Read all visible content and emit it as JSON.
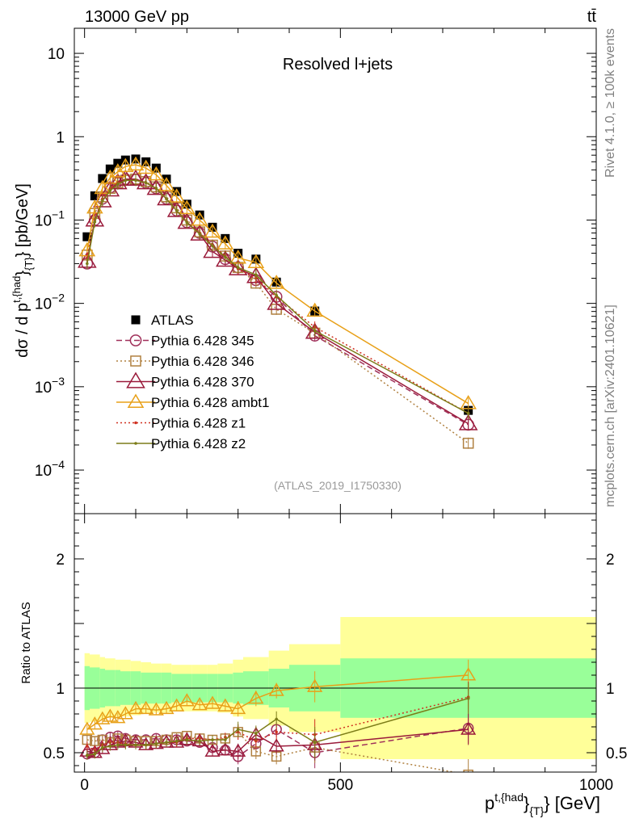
{
  "header": {
    "energy_label": "13000 GeV pp",
    "process_label": "tt̄",
    "panel_title": "Resolved l+jets",
    "analysis_id": "(ATLAS_2019_I1750330)",
    "side_rivet": "Rivet 4.1.0, ≥ 100k events",
    "side_mcplots": "mcplots.cern.ch [arXiv:2401.10621]"
  },
  "chart_data": [
    {
      "type": "line",
      "panel": "main",
      "ylabel": "dσ / d p^{t,{had}}_{T} [pb/GeV]",
      "ylabel_parts": {
        "main": "dσ / d p",
        "sup": "t,{had",
        "sup_close": "}",
        "sub": "{T}",
        "unit": "} [pb/GeV]"
      },
      "yscale": "log",
      "xlim": [
        -20,
        1000
      ],
      "ylim": [
        3e-05,
        20
      ],
      "y_ticks": [
        {
          "value": 0.0001,
          "base": "10",
          "exp": "−4"
        },
        {
          "value": 0.001,
          "base": "10",
          "exp": "−3"
        },
        {
          "value": 0.01,
          "base": "10",
          "exp": "−2"
        },
        {
          "value": 0.1,
          "base": "10",
          "exp": "−1"
        },
        {
          "value": 1,
          "base": "1",
          "exp": ""
        },
        {
          "value": 10,
          "base": "10",
          "exp": ""
        }
      ],
      "x": [
        5,
        20,
        35,
        50,
        65,
        80,
        100,
        120,
        140,
        160,
        180,
        200,
        225,
        250,
        275,
        300,
        335,
        375,
        450,
        750
      ],
      "series": [
        {
          "name": "ATLAS",
          "color": "#000000",
          "style": "data",
          "values": [
            0.063,
            0.195,
            0.315,
            0.41,
            0.48,
            0.525,
            0.54,
            0.5,
            0.42,
            0.31,
            0.22,
            0.155,
            0.115,
            0.082,
            0.06,
            0.04,
            0.034,
            0.018,
            0.0081,
            0.00052
          ]
        },
        {
          "name": "Pythia 6.428 345",
          "color": "#a0305a",
          "style": "dashed",
          "marker": "circle",
          "values": [
            0.03,
            0.1,
            0.18,
            0.245,
            0.29,
            0.31,
            0.305,
            0.28,
            0.24,
            0.18,
            0.13,
            0.094,
            0.07,
            0.048,
            0.034,
            0.027,
            0.019,
            0.012,
            0.0041,
            0.00035
          ]
        },
        {
          "name": "Pythia 6.428 346",
          "color": "#b08040",
          "style": "dotted",
          "marker": "square",
          "values": [
            0.038,
            0.12,
            0.19,
            0.24,
            0.28,
            0.3,
            0.31,
            0.29,
            0.25,
            0.19,
            0.14,
            0.1,
            0.072,
            0.05,
            0.037,
            0.027,
            0.0175,
            0.0085,
            0.0044,
            0.00021
          ]
        },
        {
          "name": "Pythia 6.428 370",
          "color": "#9a1a3a",
          "style": "solid",
          "marker": "triangle",
          "values": [
            0.032,
            0.1,
            0.17,
            0.23,
            0.28,
            0.31,
            0.31,
            0.28,
            0.24,
            0.18,
            0.13,
            0.094,
            0.068,
            0.042,
            0.033,
            0.026,
            0.021,
            0.01,
            0.0045,
            0.00036
          ]
        },
        {
          "name": "Pythia 6.428 ambt1",
          "color": "#e8a018",
          "style": "solid",
          "marker": "triangle",
          "values": [
            0.043,
            0.14,
            0.24,
            0.32,
            0.38,
            0.44,
            0.46,
            0.42,
            0.35,
            0.26,
            0.19,
            0.138,
            0.1,
            0.072,
            0.052,
            0.035,
            0.031,
            0.0175,
            0.0081,
            0.00063
          ]
        },
        {
          "name": "Pythia 6.428 z1",
          "color": "#d03020",
          "style": "dotted",
          "marker": "dot",
          "values": [
            0.035,
            0.1,
            0.18,
            0.24,
            0.28,
            0.3,
            0.3,
            0.28,
            0.24,
            0.18,
            0.13,
            0.095,
            0.07,
            0.05,
            0.037,
            0.026,
            0.02,
            0.012,
            0.0052,
            0.00048
          ]
        },
        {
          "name": "Pythia 6.428 z2",
          "color": "#7c7c18",
          "style": "solid",
          "marker": "dot",
          "values": [
            0.03,
            0.095,
            0.17,
            0.225,
            0.27,
            0.3,
            0.3,
            0.28,
            0.24,
            0.18,
            0.13,
            0.093,
            0.068,
            0.049,
            0.036,
            0.027,
            0.022,
            0.0125,
            0.0047,
            0.00048
          ]
        }
      ]
    },
    {
      "type": "line",
      "panel": "ratio",
      "xlabel": "p^{t,{had}}_{T} [GeV]",
      "xlabel_parts": {
        "main": "p",
        "sup": "t,{had",
        "sup_close": "}",
        "sub": "{T}",
        "unit": "} [GeV]"
      },
      "ylabel": "Ratio to ATLAS",
      "xlim": [
        -20,
        1000
      ],
      "ylim": [
        0.35,
        2.35
      ],
      "x_ticks": [
        0,
        500,
        1000
      ],
      "y_ticks": [
        0.5,
        1,
        2
      ],
      "x": [
        5,
        20,
        35,
        50,
        65,
        80,
        100,
        120,
        140,
        160,
        180,
        200,
        225,
        250,
        275,
        300,
        335,
        375,
        450,
        750
      ],
      "bands": {
        "edges": [
          0,
          10,
          30,
          40,
          60,
          70,
          90,
          110,
          130,
          150,
          170,
          190,
          210,
          240,
          260,
          290,
          310,
          360,
          400,
          500,
          1000
        ],
        "green_half": [
          0.17,
          0.16,
          0.15,
          0.14,
          0.14,
          0.13,
          0.13,
          0.12,
          0.12,
          0.12,
          0.11,
          0.11,
          0.11,
          0.11,
          0.11,
          0.12,
          0.13,
          0.15,
          0.18,
          0.23
        ],
        "yellow_half": [
          0.27,
          0.26,
          0.24,
          0.23,
          0.22,
          0.22,
          0.21,
          0.2,
          0.19,
          0.19,
          0.18,
          0.18,
          0.18,
          0.18,
          0.19,
          0.22,
          0.24,
          0.29,
          0.34,
          0.55
        ]
      },
      "series": [
        {
          "name": "Pythia 6.428 345",
          "color": "#a0305a",
          "values": [
            0.49,
            0.5,
            0.6,
            0.62,
            0.63,
            0.61,
            0.6,
            0.6,
            0.61,
            0.6,
            0.6,
            0.59,
            0.58,
            0.54,
            0.52,
            0.47,
            0.57,
            0.68,
            0.5,
            0.69
          ]
        },
        {
          "name": "Pythia 6.428 346",
          "color": "#b08040",
          "values": [
            0.6,
            0.59,
            0.6,
            0.58,
            0.61,
            0.6,
            0.59,
            0.59,
            0.59,
            0.6,
            0.62,
            0.63,
            0.61,
            0.6,
            0.61,
            0.66,
            0.51,
            0.47,
            0.54,
            0.33
          ]
        },
        {
          "name": "Pythia 6.428 370",
          "color": "#9a1a3a",
          "values": [
            0.51,
            0.5,
            0.53,
            0.56,
            0.58,
            0.59,
            0.58,
            0.56,
            0.57,
            0.58,
            0.58,
            0.6,
            0.59,
            0.51,
            0.52,
            0.51,
            0.64,
            0.55,
            0.56,
            0.68
          ]
        },
        {
          "name": "Pythia 6.428 ambt1",
          "color": "#e8a018",
          "values": [
            0.68,
            0.72,
            0.76,
            0.78,
            0.77,
            0.8,
            0.84,
            0.84,
            0.83,
            0.84,
            0.86,
            0.9,
            0.87,
            0.88,
            0.86,
            0.84,
            0.92,
            0.98,
            1.01,
            1.1
          ]
        },
        {
          "name": "Pythia 6.428 z1",
          "color": "#d03020",
          "values": [
            0.55,
            0.52,
            0.56,
            0.58,
            0.58,
            0.57,
            0.56,
            0.56,
            0.57,
            0.58,
            0.58,
            0.61,
            0.61,
            0.6,
            0.62,
            0.66,
            0.59,
            0.66,
            0.64,
            0.93
          ]
        },
        {
          "name": "Pythia 6.428 z2",
          "color": "#7c7c18",
          "values": [
            0.48,
            0.49,
            0.54,
            0.55,
            0.56,
            0.56,
            0.56,
            0.56,
            0.57,
            0.58,
            0.59,
            0.6,
            0.59,
            0.6,
            0.6,
            0.68,
            0.65,
            0.76,
            0.58,
            0.92
          ]
        }
      ]
    }
  ]
}
